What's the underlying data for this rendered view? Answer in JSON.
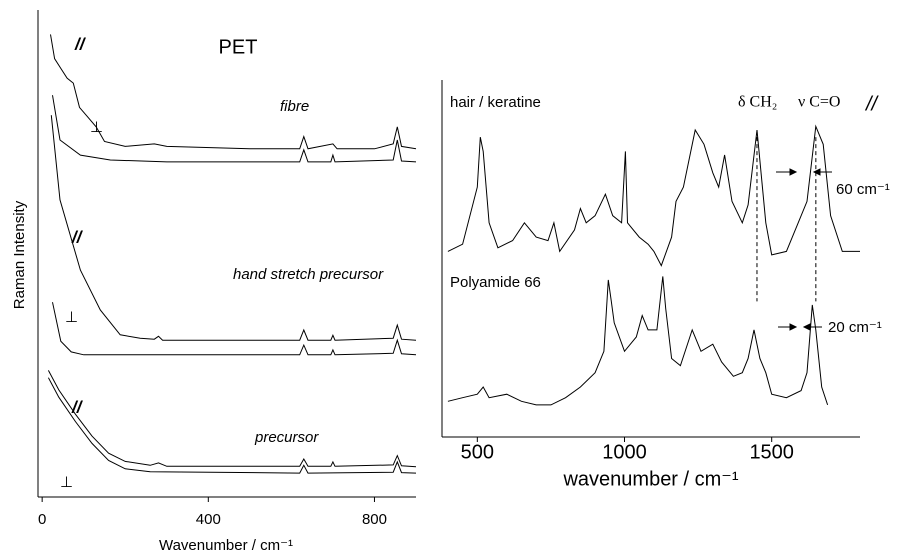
{
  "chart_data": [
    {
      "type": "line",
      "title": "PET",
      "x_label": "Wavenumber  / cm⁻¹",
      "y_label": "Raman Intensity",
      "xlim": [
        -10,
        900
      ],
      "xticks": [
        0,
        400,
        800
      ],
      "ylim": [
        0,
        100
      ],
      "annotations": [
        "//",
        "⊥",
        "fibre",
        "//",
        "hand stretch precursor",
        "⊥",
        "//",
        "precursor",
        "⊥"
      ],
      "series": [
        {
          "color": "#000000",
          "x": [
            20,
            30,
            45,
            60,
            75,
            90,
            110,
            130,
            150,
            200,
            270,
            300,
            500,
            620,
            630,
            640,
            700,
            710,
            800,
            845,
            855,
            865,
            900
          ],
          "values": [
            95,
            90,
            88,
            86,
            85,
            80,
            78,
            76,
            73,
            72,
            72.5,
            72,
            71.5,
            71.5,
            74,
            71.5,
            72.5,
            71.5,
            71.5,
            72.5,
            76,
            72,
            71.5
          ]
        },
        {
          "color": "#000000",
          "x": [
            25,
            43,
            92,
            164,
            300,
            620,
            630,
            640,
            695,
            700,
            705,
            845,
            855,
            865,
            900
          ],
          "values": [
            82.5,
            73.3,
            70.2,
            69.2,
            68.8,
            68.8,
            71.3,
            68.8,
            68.8,
            70.2,
            68.8,
            69.2,
            73.3,
            69,
            68.8
          ]
        },
        {
          "color": "#000000",
          "x": [
            22,
            43,
            92,
            140,
            188,
            236,
            270,
            280,
            290,
            620,
            630,
            640,
            695,
            700,
            705,
            845,
            855,
            865,
            900
          ],
          "values": [
            78.4,
            61,
            46.6,
            38.4,
            33.3,
            32.6,
            32.4,
            33,
            32.2,
            32.2,
            34.3,
            32.2,
            32.2,
            33.2,
            32.2,
            32.6,
            35.3,
            32.4,
            32.2
          ]
        },
        {
          "color": "#000000",
          "x": [
            25,
            45,
            70,
            100,
            300,
            620,
            630,
            640,
            695,
            700,
            705,
            845,
            855,
            865,
            900
          ],
          "values": [
            40,
            32,
            29.8,
            29.2,
            29.2,
            29.2,
            31.2,
            29.2,
            29.2,
            30.2,
            29.2,
            29.5,
            32.2,
            29.4,
            29.2
          ]
        },
        {
          "color": "#000000",
          "x": [
            15,
            40,
            80,
            120,
            160,
            200,
            260,
            280,
            300,
            620,
            630,
            640,
            695,
            700,
            705,
            845,
            855,
            865,
            900
          ],
          "values": [
            26,
            22,
            17,
            12.5,
            9,
            7.3,
            6.5,
            7,
            6.3,
            6.3,
            7.8,
            6.3,
            6.3,
            7.2,
            6.3,
            6.6,
            8.5,
            6.4,
            6.2
          ]
        },
        {
          "color": "#000000",
          "x": [
            15,
            40,
            80,
            120,
            160,
            200,
            260,
            620,
            630,
            640,
            845,
            855,
            865,
            900
          ],
          "values": [
            24.5,
            20.5,
            15.5,
            11,
            7.5,
            5.8,
            5.2,
            4.9,
            6.5,
            4.9,
            5.1,
            7.2,
            5,
            4.9
          ]
        }
      ]
    },
    {
      "type": "line",
      "x_label": "wavenumber  / cm⁻¹",
      "xlim": [
        380,
        1800
      ],
      "xticks": [
        500,
        1000,
        1500
      ],
      "ylim": [
        0,
        100
      ],
      "reference_lines": [
        1450,
        1650
      ],
      "annotations": [
        "δ CH₂",
        "ν C=O",
        "//",
        "60 cm⁻¹",
        "20 cm⁻¹"
      ],
      "series": [
        {
          "name": "hair / keratine",
          "color": "#000000",
          "x": [
            400,
            450,
            500,
            510,
            520,
            540,
            570,
            620,
            660,
            700,
            740,
            760,
            780,
            830,
            850,
            870,
            900,
            935,
            960,
            990,
            1003,
            1010,
            1050,
            1080,
            1100,
            1125,
            1160,
            1175,
            1200,
            1240,
            1270,
            1300,
            1320,
            1340,
            1365,
            1400,
            1420,
            1450,
            1480,
            1500,
            1550,
            1590,
            1620,
            1650,
            1675,
            1700,
            1740,
            1800
          ],
          "values": [
            52,
            54,
            70,
            84,
            80,
            60,
            53,
            55,
            60,
            56,
            55,
            60,
            52,
            58,
            64,
            60,
            62,
            68,
            62,
            60,
            80,
            60,
            56,
            54,
            52,
            48,
            56,
            66,
            70,
            86,
            82,
            74,
            70,
            79,
            66,
            60,
            65,
            86,
            60,
            51,
            52,
            60,
            66,
            87,
            82,
            62,
            52,
            52
          ]
        },
        {
          "name": "Polyamide 66",
          "color": "#000000",
          "x": [
            400,
            450,
            500,
            520,
            540,
            600,
            650,
            700,
            750,
            800,
            850,
            900,
            930,
            945,
            955,
            965,
            1000,
            1040,
            1060,
            1080,
            1110,
            1130,
            1140,
            1160,
            1190,
            1230,
            1260,
            1300,
            1330,
            1370,
            1400,
            1420,
            1440,
            1460,
            1480,
            1500,
            1550,
            1600,
            1620,
            1638,
            1650,
            1670,
            1690
          ],
          "values": [
            10,
            11,
            12,
            14,
            11,
            12,
            10,
            9,
            9,
            11,
            14,
            18,
            24,
            44,
            38,
            32,
            24,
            28,
            34,
            30,
            30,
            45,
            36,
            22,
            20,
            30,
            24,
            26,
            21,
            17,
            18,
            22,
            30,
            22,
            18,
            12,
            11,
            13,
            18,
            37,
            30,
            14,
            9
          ]
        }
      ]
    }
  ]
}
